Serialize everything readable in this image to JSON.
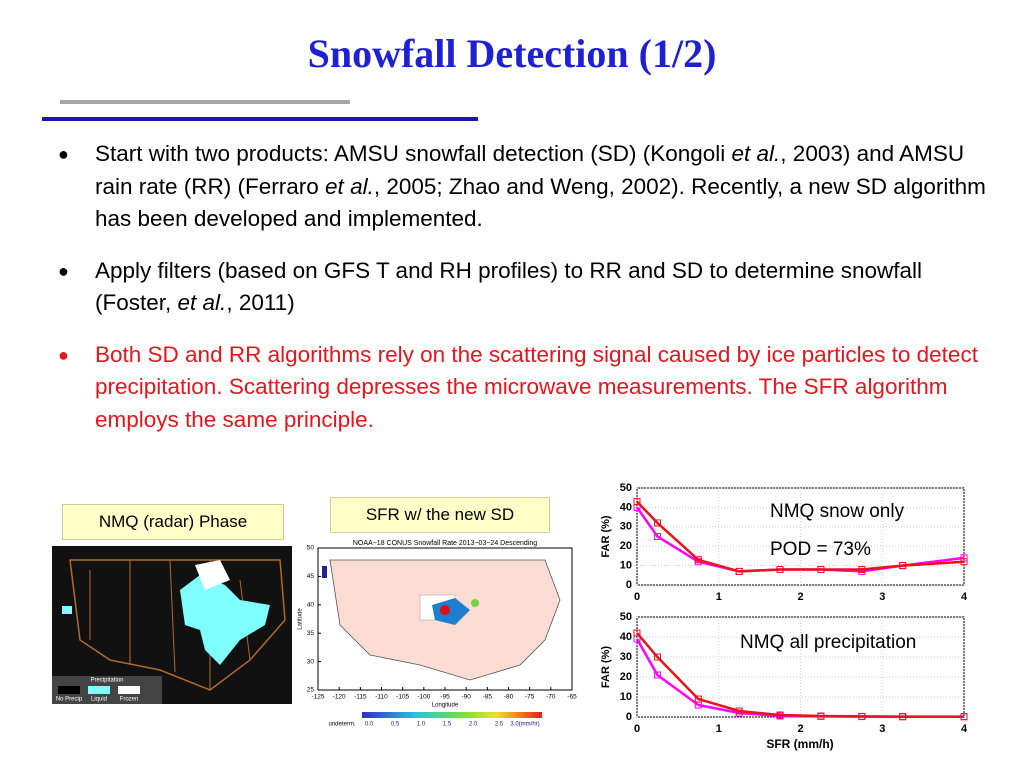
{
  "title": "Snowfall Detection (1/2)",
  "bullets": [
    {
      "color": "#000000",
      "segments": [
        {
          "text": "Start with two products: AMSU snowfall detection (SD) (Kongoli ",
          "italic": false
        },
        {
          "text": "et al.",
          "italic": true
        },
        {
          "text": ", 2003) and AMSU rain rate (RR) (Ferraro ",
          "italic": false
        },
        {
          "text": "et al.",
          "italic": true
        },
        {
          "text": ", 2005; Zhao and Weng, 2002). Recently, a new SD algorithm has been developed and implemented.",
          "italic": false
        }
      ]
    },
    {
      "color": "#000000",
      "segments": [
        {
          "text": "Apply filters (based on GFS T and RH profiles) to RR and SD to determine snowfall (Foster, ",
          "italic": false
        },
        {
          "text": "et al.",
          "italic": true
        },
        {
          "text": ", 2011)",
          "italic": false
        }
      ]
    },
    {
      "color": "#e8141c",
      "segments": [
        {
          "text": "Both SD and RR algorithms rely on the scattering signal caused by ice particles to detect precipitation. Scattering depresses the microwave measurements. The SFR algorithm employs the same principle.",
          "italic": false
        }
      ]
    }
  ],
  "radar_map": {
    "label": "NMQ (radar) Phase",
    "legend_title": "Precipitation",
    "legend": [
      "No Precip",
      "Liquid",
      "Frozen"
    ]
  },
  "sfr_map": {
    "label": "SFR w/ the new SD",
    "title": "NOAA−18 CONUS Snowfall Rate 2013−03−24 Descending",
    "xlabel": "Longitude",
    "ylabel": "Latitude",
    "xticks": [
      -125,
      -120,
      -115,
      -110,
      -105,
      -100,
      -95,
      -90,
      -85,
      -80,
      -75,
      -70,
      -65
    ],
    "yticks": [
      25,
      30,
      35,
      40,
      45,
      50
    ],
    "colorbar": [
      "undeterm.",
      "0.0",
      "0.5",
      "1.0",
      "1.5",
      "2.0",
      "2.5",
      "3.0(mm/hr)"
    ]
  },
  "chart_data": [
    {
      "type": "line",
      "ylabel": "FAR (%)",
      "annotations": [
        "NMQ snow only",
        "POD = 73%"
      ],
      "x": [
        0,
        0.25,
        0.75,
        1.25,
        1.75,
        2.25,
        2.75,
        3.25,
        4
      ],
      "series": [
        {
          "color": "#ff00ff",
          "values": [
            40,
            25,
            12,
            7,
            8,
            8,
            7,
            10,
            14
          ]
        },
        {
          "color": "#e8141c",
          "values": [
            43,
            32,
            13,
            7,
            8,
            8,
            8,
            10,
            12
          ]
        }
      ],
      "xlim": [
        0,
        4
      ],
      "xticks": [
        0,
        1,
        2,
        3,
        4
      ],
      "ylim": [
        0,
        50
      ],
      "yticks": [
        0,
        10,
        20,
        30,
        40,
        50
      ],
      "grid": true
    },
    {
      "type": "line",
      "ylabel": "FAR (%)",
      "xlabel": "SFR (mm/h)",
      "annotations": [
        "NMQ all precipitation"
      ],
      "x": [
        0,
        0.25,
        0.75,
        1.25,
        1.75,
        2.25,
        2.75,
        3.25,
        4
      ],
      "series": [
        {
          "color": "#ff00ff",
          "values": [
            39,
            21,
            6,
            2,
            0.5,
            0.3,
            0.2,
            0.1,
            0.1
          ]
        },
        {
          "color": "#e8141c",
          "values": [
            42,
            30,
            9,
            3,
            1,
            0.5,
            0.3,
            0.2,
            0.2
          ]
        }
      ],
      "xlim": [
        0,
        4
      ],
      "xticks": [
        0,
        1,
        2,
        3,
        4
      ],
      "ylim": [
        0,
        50
      ],
      "yticks": [
        0,
        10,
        20,
        30,
        40,
        50
      ],
      "grid": true
    }
  ]
}
